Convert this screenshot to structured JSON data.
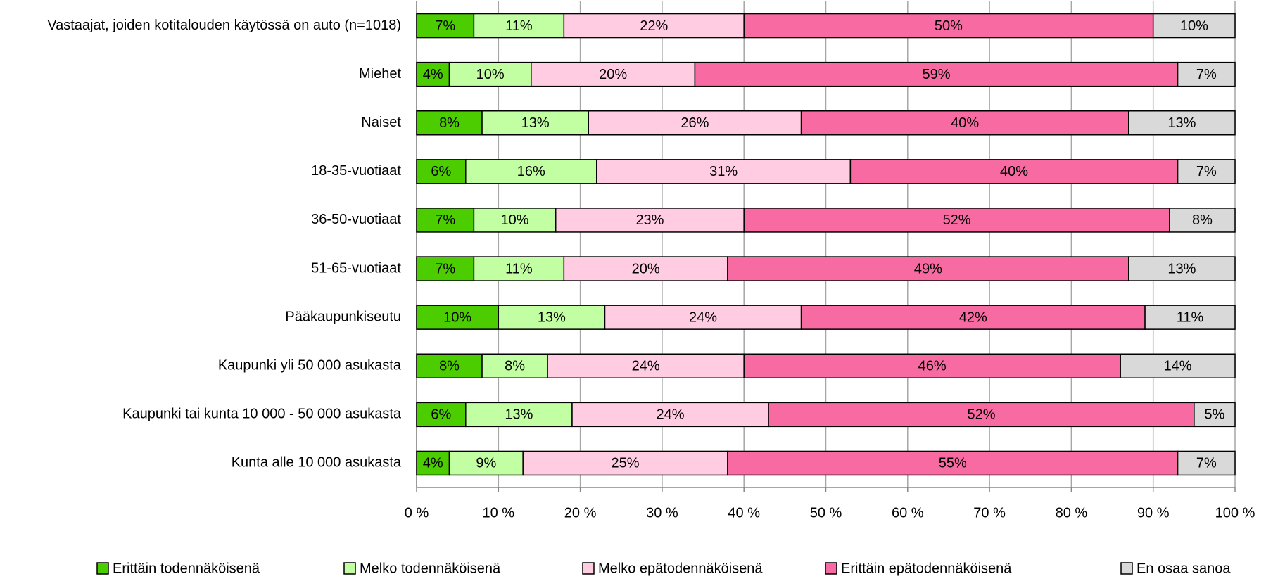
{
  "chart_data": {
    "type": "stacked-barh",
    "categories": [
      "Vastaajat, joiden kotitalouden käytössä on auto (n=1018)",
      "Miehet",
      "Naiset",
      "18-35-vuotiaat",
      "36-50-vuotiaat",
      "51-65-vuotiaat",
      "Pääkaupunkiseutu",
      "Kaupunki yli 50 000 asukasta",
      "Kaupunki tai kunta 10 000 - 50 000 asukasta",
      "Kunta alle 10 000 asukasta"
    ],
    "series": [
      {
        "name": "Erittäin todennäköisenä",
        "color": "#4ccd00",
        "values": [
          7,
          4,
          8,
          6,
          7,
          7,
          10,
          8,
          6,
          4
        ],
        "value_labels": [
          "7%",
          "4%",
          "8%",
          "6%",
          "7%",
          "7%",
          "10%",
          "8%",
          "6%",
          "4%"
        ]
      },
      {
        "name": "Melko todennäköisenä",
        "color": "#c2ffa3",
        "values": [
          11,
          10,
          13,
          16,
          10,
          11,
          13,
          8,
          13,
          9
        ],
        "value_labels": [
          "11%",
          "10%",
          "13%",
          "16%",
          "10%",
          "11%",
          "13%",
          "8%",
          "13%",
          "9%"
        ]
      },
      {
        "name": "Melko epätodennäköisenä",
        "color": "#ffcce2",
        "values": [
          22,
          20,
          26,
          31,
          23,
          20,
          24,
          24,
          24,
          25
        ],
        "value_labels": [
          "22%",
          "20%",
          "26%",
          "31%",
          "23%",
          "20%",
          "24%",
          "24%",
          "24%",
          "25%"
        ]
      },
      {
        "name": "Erittäin epätodennäköisenä",
        "color": "#f76aa2",
        "values": [
          50,
          59,
          40,
          40,
          52,
          49,
          42,
          46,
          52,
          55
        ],
        "value_labels": [
          "50%",
          "59%",
          "40%",
          "40%",
          "52%",
          "49%",
          "42%",
          "46%",
          "52%",
          "55%"
        ]
      },
      {
        "name": "En osaa sanoa",
        "color": "#d9d9d9",
        "values": [
          10,
          7,
          13,
          7,
          8,
          13,
          11,
          14,
          5,
          7
        ],
        "value_labels": [
          "10%",
          "7%",
          "13%",
          "7%",
          "8%",
          "13%",
          "11%",
          "14%",
          "5%",
          "7%"
        ]
      }
    ],
    "xlim": [
      0,
      100
    ],
    "xticks": [
      {
        "value": 0,
        "label": "0 %"
      },
      {
        "value": 10,
        "label": "10 %"
      },
      {
        "value": 20,
        "label": "20 %"
      },
      {
        "value": 30,
        "label": "30 %"
      },
      {
        "value": 40,
        "label": "40 %"
      },
      {
        "value": 50,
        "label": "50 %"
      },
      {
        "value": 60,
        "label": "60 %"
      },
      {
        "value": 70,
        "label": "70 %"
      },
      {
        "value": 80,
        "label": "80 %"
      },
      {
        "value": 90,
        "label": "90 %"
      },
      {
        "value": 100,
        "label": "100 %"
      }
    ],
    "grid": true,
    "legend": "bottom"
  }
}
